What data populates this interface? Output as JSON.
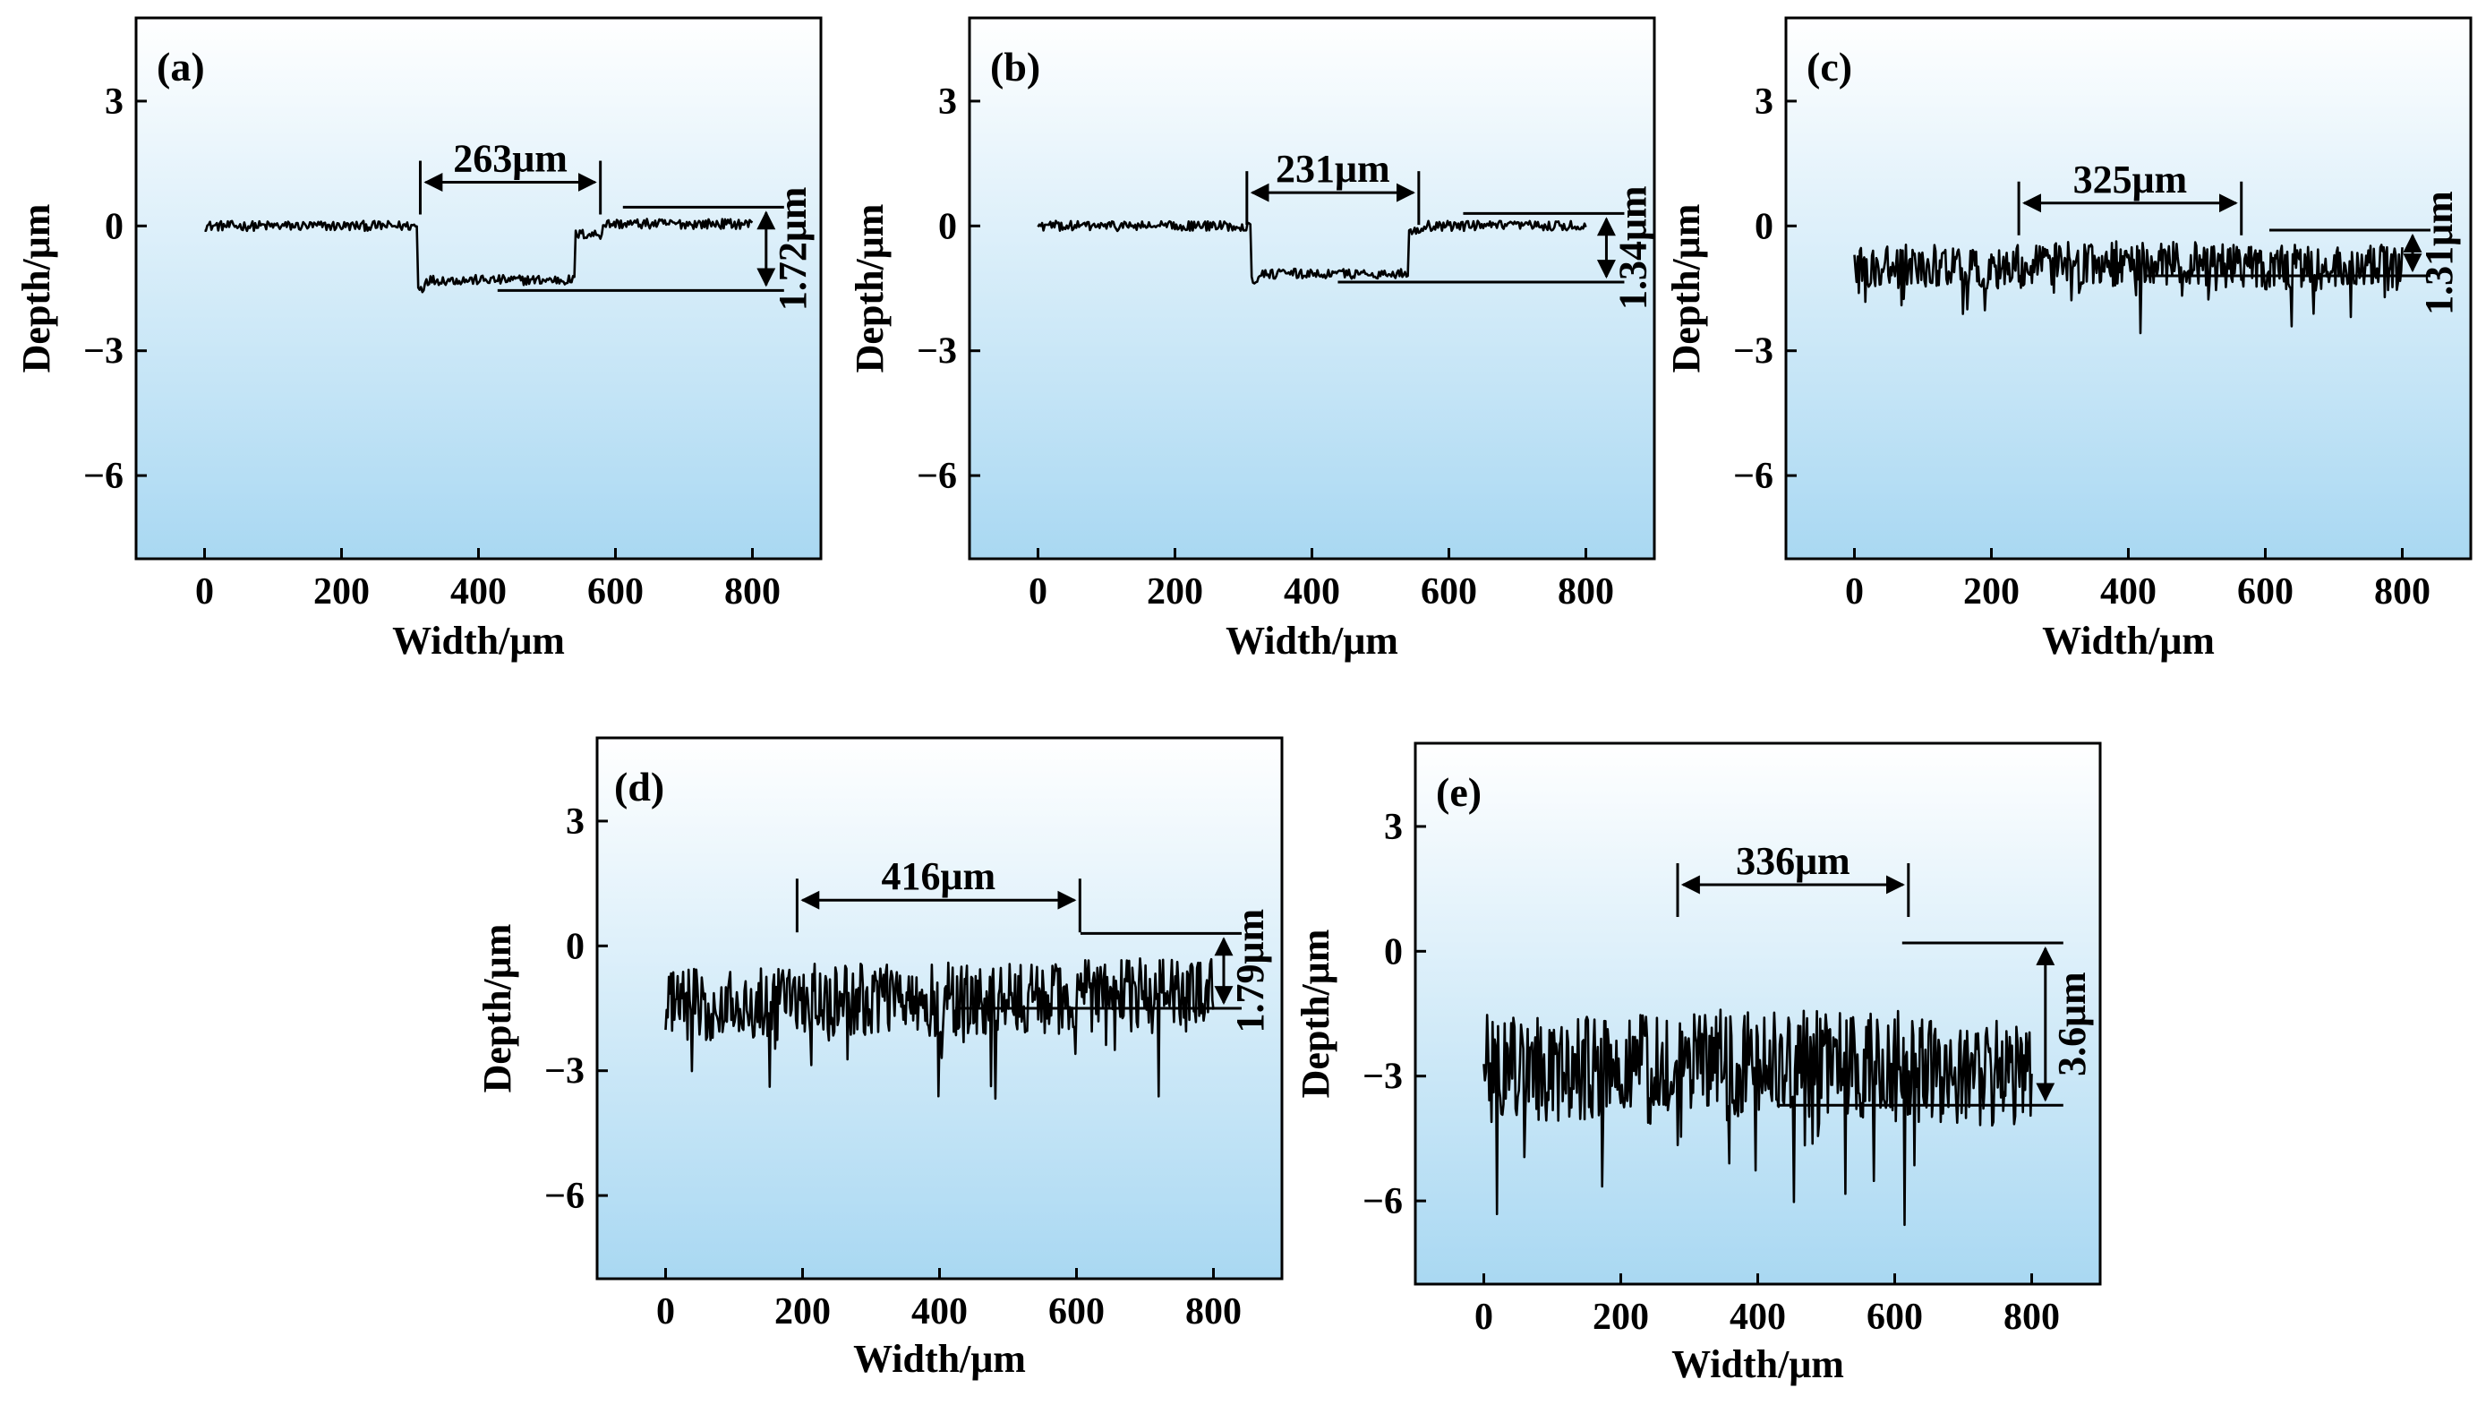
{
  "chart_data": [
    {
      "type": "line",
      "panel_label": "(a)",
      "xlabel": "Width/μm",
      "ylabel": "Depth/μm",
      "xlim": [
        -100,
        900
      ],
      "ylim": [
        -8,
        5
      ],
      "xticks": [
        0,
        200,
        400,
        600,
        800
      ],
      "xtick_labels": [
        "0",
        "200",
        "400",
        "600",
        "800"
      ],
      "yticks": [
        3,
        0,
        -3,
        -6
      ],
      "ytick_labels": [
        "3",
        "0",
        "−3",
        "−6"
      ],
      "grid": false,
      "series": [
        {
          "name": "profile",
          "segments": [
            {
              "x": [
                0,
                310
              ],
              "level": 0.0
            },
            {
              "x": [
                310,
                320
              ],
              "level": -1.5
            },
            {
              "x": [
                320,
                540
              ],
              "level": -1.3
            },
            {
              "x": [
                540,
                580
              ],
              "level": -0.2
            },
            {
              "x": [
                580,
                800
              ],
              "level": 0.05
            }
          ],
          "noise": 0.12,
          "points": 400
        }
      ],
      "annotations": [
        {
          "text": "263μm",
          "type": "width",
          "x1": 315,
          "x2": 578,
          "y": 1.05
        },
        {
          "text": "1.72μm",
          "type": "depth",
          "x": 820,
          "y1": 0.45,
          "y2": -1.55
        }
      ]
    },
    {
      "type": "line",
      "panel_label": "(b)",
      "xlabel": "Width/μm",
      "ylabel": "Depth/μm",
      "xlim": [
        -100,
        900
      ],
      "ylim": [
        -8,
        5
      ],
      "xticks": [
        0,
        200,
        400,
        600,
        800
      ],
      "xtick_labels": [
        "0",
        "200",
        "400",
        "600",
        "800"
      ],
      "yticks": [
        3,
        0,
        -3,
        -6
      ],
      "ytick_labels": [
        "3",
        "0",
        "−3",
        "−6"
      ],
      "grid": false,
      "series": [
        {
          "name": "profile",
          "segments": [
            {
              "x": [
                0,
                310
              ],
              "level": 0.0
            },
            {
              "x": [
                310,
                320
              ],
              "level": -1.3
            },
            {
              "x": [
                320,
                540
              ],
              "level": -1.15
            },
            {
              "x": [
                540,
                560
              ],
              "level": -0.1
            },
            {
              "x": [
                560,
                800
              ],
              "level": 0.0
            }
          ],
          "noise": 0.12,
          "points": 400
        }
      ],
      "annotations": [
        {
          "text": "231μm",
          "type": "width",
          "x1": 305,
          "x2": 556,
          "y": 0.8
        },
        {
          "text": "1.34μm",
          "type": "depth",
          "x": 830,
          "y1": 0.3,
          "y2": -1.35
        }
      ]
    },
    {
      "type": "line",
      "panel_label": "(c)",
      "xlabel": "Width/μm",
      "ylabel": "Depth/μm",
      "xlim": [
        -100,
        900
      ],
      "ylim": [
        -8,
        5
      ],
      "xticks": [
        0,
        200,
        400,
        600,
        800
      ],
      "xtick_labels": [
        "0",
        "200",
        "400",
        "600",
        "800"
      ],
      "yticks": [
        3,
        0,
        -3,
        -6
      ],
      "ytick_labels": [
        "3",
        "0",
        "−3",
        "−6"
      ],
      "grid": false,
      "series": [
        {
          "name": "profile",
          "segments": [
            {
              "x": [
                0,
                250
              ],
              "level": -1.0
            },
            {
              "x": [
                250,
                560
              ],
              "level": -0.9
            },
            {
              "x": [
                560,
                800
              ],
              "level": -1.0
            }
          ],
          "noise": 0.55,
          "points": 500
        }
      ],
      "annotations": [
        {
          "text": "325μm",
          "type": "width",
          "x1": 240,
          "x2": 565,
          "y": 0.55
        },
        {
          "text": "1.31μm",
          "type": "depth",
          "x": 815,
          "y1": -0.1,
          "y2": -1.2
        }
      ]
    },
    {
      "type": "line",
      "panel_label": "(d)",
      "xlabel": "Width/μm",
      "ylabel": "Depth/μm",
      "xlim": [
        -100,
        900
      ],
      "ylim": [
        -8,
        5
      ],
      "xticks": [
        0,
        200,
        400,
        600,
        800
      ],
      "xtick_labels": [
        "0",
        "200",
        "400",
        "600",
        "800"
      ],
      "yticks": [
        3,
        0,
        -3,
        -6
      ],
      "ytick_labels": [
        "3",
        "0",
        "−3",
        "−6"
      ],
      "grid": false,
      "series": [
        {
          "name": "profile",
          "segments": [
            {
              "x": [
                0,
                200
              ],
              "level": -1.4
            },
            {
              "x": [
                200,
                600
              ],
              "level": -1.3
            },
            {
              "x": [
                600,
                800
              ],
              "level": -1.2
            }
          ],
          "noise": 0.9,
          "points": 500
        }
      ],
      "annotations": [
        {
          "text": "416μm",
          "type": "width",
          "x1": 192,
          "x2": 605,
          "y": 1.1
        },
        {
          "text": "1.79μm",
          "type": "depth",
          "x": 815,
          "y1": 0.3,
          "y2": -1.5
        }
      ]
    },
    {
      "type": "line",
      "panel_label": "(e)",
      "xlabel": "Width/μm",
      "ylabel": "Depth/μm",
      "xlim": [
        -100,
        900
      ],
      "ylim": [
        -8,
        5
      ],
      "xticks": [
        0,
        200,
        400,
        600,
        800
      ],
      "xtick_labels": [
        "0",
        "200",
        "400",
        "600",
        "800"
      ],
      "yticks": [
        3,
        0,
        -3,
        -6
      ],
      "ytick_labels": [
        "3",
        "0",
        "−3",
        "−6"
      ],
      "grid": false,
      "series": [
        {
          "name": "profile",
          "segments": [
            {
              "x": [
                0,
                280
              ],
              "level": -2.8
            },
            {
              "x": [
                280,
                620
              ],
              "level": -2.7
            },
            {
              "x": [
                620,
                800
              ],
              "level": -2.9
            }
          ],
          "noise": 1.3,
          "points": 500
        }
      ],
      "annotations": [
        {
          "text": "336μm",
          "type": "width",
          "x1": 283,
          "x2": 620,
          "y": 1.6
        },
        {
          "text": "3.6μm",
          "type": "depth",
          "x": 820,
          "y1": 0.2,
          "y2": -3.7
        }
      ]
    }
  ]
}
